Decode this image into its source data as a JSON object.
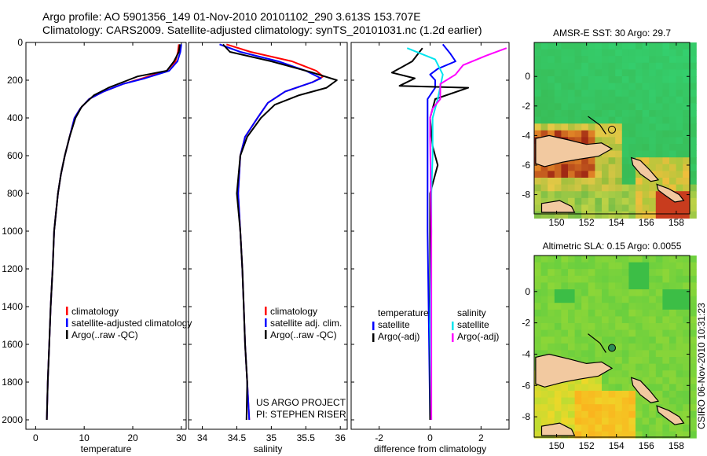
{
  "header": {
    "line1": "Argo profile: AO 5901356_149 01-Nov-2010 20101102_290 3.613S 153.707E",
    "line2": "Climatology: CARS2009. Satellite-adjusted climatology: synTS_20101031.nc (1.2d earlier)"
  },
  "side_label": "CSIRO 06-Nov-2010 10:31:23",
  "credit": {
    "line1": "US ARGO PROJECT",
    "line2": "PI: STEPHEN RISER"
  },
  "chart_data": [
    {
      "type": "line",
      "panel": "temperature",
      "xlabel": "temperature",
      "ylabel": "",
      "xlim": [
        -2,
        31
      ],
      "ylim": [
        2050,
        0
      ],
      "y_reversed": true,
      "xticks": [
        0,
        10,
        20,
        30
      ],
      "yticks": [
        0,
        200,
        400,
        600,
        800,
        1000,
        1200,
        1400,
        1600,
        1800,
        2000
      ],
      "legend": [
        "climatology",
        "satellite-adjusted climatology",
        "Argo(..raw -QC)"
      ],
      "series": [
        {
          "name": "climatology",
          "color": "#ff0000",
          "points": [
            [
              29.5,
              10
            ],
            [
              29.3,
              50
            ],
            [
              28.8,
              100
            ],
            [
              27,
              150
            ],
            [
              22,
              190
            ],
            [
              18,
              220
            ],
            [
              14,
              260
            ],
            [
              11,
              300
            ],
            [
              9.2,
              350
            ],
            [
              8,
              400
            ],
            [
              7,
              500
            ],
            [
              6,
              600
            ],
            [
              5.2,
              700
            ],
            [
              4.6,
              800
            ],
            [
              4.2,
              900
            ],
            [
              3.8,
              1000
            ],
            [
              3.5,
              1200
            ],
            [
              3.1,
              1400
            ],
            [
              2.8,
              1600
            ],
            [
              2.5,
              1800
            ],
            [
              2.3,
              2000
            ]
          ]
        },
        {
          "name": "satellite-adjusted climatology",
          "color": "#0000ff",
          "points": [
            [
              30,
              10
            ],
            [
              29.8,
              50
            ],
            [
              29.2,
              100
            ],
            [
              27.5,
              150
            ],
            [
              22.5,
              190
            ],
            [
              18,
              220
            ],
            [
              14,
              260
            ],
            [
              11,
              300
            ],
            [
              9.2,
              350
            ],
            [
              8,
              400
            ],
            [
              7,
              500
            ],
            [
              6,
              600
            ],
            [
              5.2,
              700
            ],
            [
              4.6,
              800
            ],
            [
              4.2,
              900
            ],
            [
              3.8,
              1000
            ],
            [
              3.5,
              1200
            ],
            [
              3.1,
              1400
            ],
            [
              2.8,
              1600
            ],
            [
              2.5,
              1800
            ],
            [
              2.3,
              2000
            ]
          ]
        },
        {
          "name": "Argo(..raw -QC)",
          "color": "#000000",
          "points": [
            [
              29.7,
              10
            ],
            [
              29.5,
              50
            ],
            [
              28.5,
              100
            ],
            [
              27,
              150
            ],
            [
              21,
              180
            ],
            [
              19,
              200
            ],
            [
              15,
              240
            ],
            [
              12,
              280
            ],
            [
              9.5,
              340
            ],
            [
              8.2,
              400
            ],
            [
              7,
              500
            ],
            [
              6,
              600
            ],
            [
              5.2,
              700
            ],
            [
              4.6,
              800
            ],
            [
              4.2,
              900
            ],
            [
              3.8,
              1000
            ],
            [
              3.5,
              1200
            ],
            [
              3.1,
              1400
            ],
            [
              2.8,
              1600
            ],
            [
              2.5,
              1800
            ],
            [
              2.3,
              2000
            ]
          ]
        }
      ]
    },
    {
      "type": "line",
      "panel": "salinity",
      "xlabel": "salinity",
      "ylabel": "",
      "xlim": [
        33.8,
        36.1
      ],
      "ylim": [
        2050,
        0
      ],
      "y_reversed": true,
      "xticks": [
        34,
        34.5,
        35,
        35.5,
        36
      ],
      "legend": [
        "climatology",
        "satellite adj. clim.",
        "Argo(..raw -QC)"
      ],
      "series": [
        {
          "name": "climatology",
          "color": "#ff0000",
          "points": [
            [
              34.35,
              10
            ],
            [
              34.7,
              50
            ],
            [
              35.3,
              100
            ],
            [
              35.65,
              150
            ],
            [
              35.75,
              180
            ],
            [
              35.6,
              210
            ],
            [
              35.2,
              260
            ],
            [
              34.95,
              320
            ],
            [
              34.8,
              400
            ],
            [
              34.62,
              500
            ],
            [
              34.55,
              600
            ],
            [
              34.52,
              800
            ],
            [
              34.55,
              1000
            ],
            [
              34.58,
              1200
            ],
            [
              34.6,
              1400
            ],
            [
              34.62,
              1600
            ],
            [
              34.65,
              1800
            ],
            [
              34.68,
              2000
            ]
          ]
        },
        {
          "name": "satellite adj. clim.",
          "color": "#0000ff",
          "points": [
            [
              34.25,
              10
            ],
            [
              34.55,
              50
            ],
            [
              35.1,
              100
            ],
            [
              35.5,
              150
            ],
            [
              35.72,
              190
            ],
            [
              35.6,
              210
            ],
            [
              35.2,
              260
            ],
            [
              34.95,
              320
            ],
            [
              34.8,
              400
            ],
            [
              34.62,
              500
            ],
            [
              34.55,
              600
            ],
            [
              34.52,
              800
            ],
            [
              34.55,
              1000
            ],
            [
              34.58,
              1200
            ],
            [
              34.6,
              1400
            ],
            [
              34.62,
              1600
            ],
            [
              34.65,
              1800
            ],
            [
              34.68,
              2000
            ]
          ]
        },
        {
          "name": "Argo(..raw -QC)",
          "color": "#000000",
          "points": [
            [
              34.3,
              10
            ],
            [
              34.4,
              50
            ],
            [
              35,
              100
            ],
            [
              35.6,
              160
            ],
            [
              35.95,
              200
            ],
            [
              35.8,
              240
            ],
            [
              35.4,
              280
            ],
            [
              35.05,
              330
            ],
            [
              34.85,
              400
            ],
            [
              34.65,
              500
            ],
            [
              34.55,
              600
            ],
            [
              34.5,
              800
            ],
            [
              34.55,
              1000
            ],
            [
              34.58,
              1200
            ],
            [
              34.6,
              1400
            ],
            [
              34.62,
              1600
            ],
            [
              34.65,
              1800
            ],
            [
              34.64,
              2000
            ]
          ]
        }
      ]
    },
    {
      "type": "line",
      "panel": "difference",
      "xlabel": "difference from climatology",
      "ylabel": "",
      "xlim": [
        -3.1,
        3.1
      ],
      "ylim": [
        2050,
        0
      ],
      "y_reversed": true,
      "xticks": [
        -2,
        0,
        2
      ],
      "legend_groups": [
        {
          "title": "temperature",
          "entries": [
            "satellite",
            "Argo(-adj)"
          ]
        },
        {
          "title": "salinity",
          "entries": [
            "satellite",
            "Argo(-adj)"
          ]
        }
      ],
      "series": [
        {
          "name": "temperature satellite",
          "color": "#0000ff",
          "points": [
            [
              0.5,
              10
            ],
            [
              0.8,
              60
            ],
            [
              1,
              100
            ],
            [
              0.3,
              140
            ],
            [
              0,
              170
            ],
            [
              0.2,
              200
            ],
            [
              0.2,
              240
            ],
            [
              -0.1,
              300
            ],
            [
              -0.1,
              500
            ],
            [
              -0.1,
              1000
            ],
            [
              0,
              2000
            ]
          ]
        },
        {
          "name": "temperature Argo(-adj)",
          "color": "#000000",
          "points": [
            [
              -0.3,
              30
            ],
            [
              -0.7,
              100
            ],
            [
              -1.5,
              160
            ],
            [
              -0.6,
              190
            ],
            [
              -1.2,
              230
            ],
            [
              1.5,
              240
            ],
            [
              0.2,
              300
            ],
            [
              0,
              400
            ],
            [
              0.1,
              550
            ],
            [
              0.3,
              650
            ],
            [
              0,
              800
            ],
            [
              0,
              1200
            ],
            [
              0,
              2000
            ]
          ]
        },
        {
          "name": "salinity satellite",
          "color": "#00e5ee",
          "points": [
            [
              -0.9,
              30
            ],
            [
              0.2,
              90
            ],
            [
              0.5,
              170
            ],
            [
              0.3,
              300
            ],
            [
              0.1,
              400
            ],
            [
              0.1,
              600
            ],
            [
              0.05,
              800
            ],
            [
              0.05,
              1000
            ],
            [
              0,
              1500
            ],
            [
              0.05,
              2000
            ]
          ]
        },
        {
          "name": "salinity Argo(-adj)",
          "color": "#ff00ff",
          "points": [
            [
              3,
              30
            ],
            [
              2.2,
              70
            ],
            [
              1.3,
              120
            ],
            [
              1,
              170
            ],
            [
              0.4,
              220
            ],
            [
              0.4,
              300
            ],
            [
              0.1,
              350
            ],
            [
              0,
              400
            ],
            [
              0,
              500
            ],
            [
              0.05,
              1000
            ],
            [
              0.05,
              1500
            ],
            [
              0.05,
              2000
            ]
          ]
        }
      ]
    },
    {
      "type": "heatmap",
      "panel": "sst-map",
      "title": "AMSR-E SST: 30 Argo: 29.7",
      "xticks": [
        150,
        152,
        154,
        156,
        158
      ],
      "yticks": [
        0,
        -2,
        -4,
        -6,
        -8
      ],
      "xlim": [
        148.5,
        158.9
      ],
      "ylim": [
        -9.3,
        2.3
      ],
      "argo_position": [
        153.7,
        -3.6
      ]
    },
    {
      "type": "heatmap",
      "panel": "sla-map",
      "title": "Altimetric SLA: 0.15 Argo: 0.0055",
      "xticks": [
        150,
        152,
        154,
        156,
        158
      ],
      "yticks": [
        0,
        -2,
        -4,
        -6,
        -8
      ],
      "xlim": [
        148.5,
        158.9
      ],
      "ylim": [
        -9.3,
        2.3
      ],
      "argo_position": [
        153.7,
        -3.6
      ]
    }
  ]
}
